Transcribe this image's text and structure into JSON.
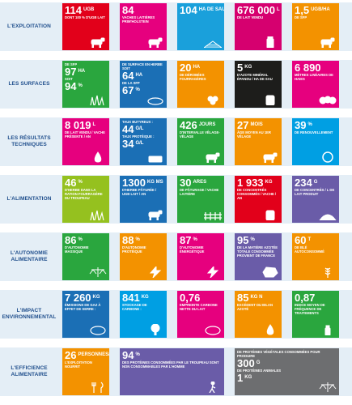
{
  "rows": [
    {
      "label": "L'EXPLOITATION",
      "tiles": [
        {
          "big": "114",
          "unit": "UGB",
          "text": "DONT 100 % D'UGB LAIT",
          "icon": "cows-icon"
        },
        {
          "big": "84",
          "unit": "",
          "text": "VACHES LAITIÈRES PRIM'HOLSTEIN",
          "icon": "cow-icon"
        },
        {
          "big": "104",
          "unit": "HA DE SAU",
          "text": "",
          "icon": "field-icon"
        },
        {
          "big": "676 000",
          "unit": "L",
          "text": "DE LAIT VENDU",
          "icon": "milk-can-icon"
        },
        {
          "big": "1,5",
          "unit": "UGB/HA",
          "text": "DE SFP",
          "icon": "cows-icon"
        }
      ]
    },
    {
      "label": "LES SURFACES",
      "tiles": [
        {
          "big": "97",
          "unit": "HA",
          "text": "DE SFP",
          "big2": "94",
          "unit2": "%",
          "text2": "SOIT",
          "icon": "grass-icon"
        },
        {
          "big": "64",
          "unit": "HA",
          "text": "DE SURFACE EN HERBE SOIT",
          "big2": "67",
          "unit2": "%",
          "text2": "DE LA SFP",
          "icon": "hay-icon"
        },
        {
          "big": "20",
          "unit": "HA",
          "text": "DE DÉROBÉES FOURRAGÈRES",
          "icon": "clover-icon"
        },
        {
          "big": "5",
          "unit": "KG",
          "text": "D'AZOTE MINÉRAL ÉPANDU / HA DE SAU",
          "icon": "fertilizer-icon"
        },
        {
          "big": "6 890",
          "unit": "",
          "text": "MÈTRES LINÉAIRES DE HAIES",
          "icon": "hedge-icon"
        }
      ]
    },
    {
      "label": "LES RÉSULTATS TECHNIQUES",
      "tiles": [
        {
          "big": "8 019",
          "unit": "L",
          "text": "DE LAIT VENDU / VACHE PRÉSENTE / AN",
          "icon": "udder-icon"
        },
        {
          "big": "44",
          "unit": "G/L",
          "text": "TAUX BUTYREUX :",
          "big2": "34",
          "unit2": "G/L",
          "text2": "TAUX PROTÉIQUE :",
          "icon": "butter-icon"
        },
        {
          "big": "426",
          "unit": "JOURS",
          "text": "D'INTERVALLE VÊLAGE-VÊLAGE",
          "icon": "calf-icon"
        },
        {
          "big": "27",
          "unit": "MOIS",
          "text": "ÂGE MOYEN AU 1ER VÊLAGE",
          "icon": "calf-icon"
        },
        {
          "big": "39",
          "unit": "%",
          "text": "DE RENOUVELLEMENT",
          "icon": "renewal-icon"
        }
      ]
    },
    {
      "label": "L'ALIMENTATION",
      "tiles": [
        {
          "big": "46",
          "unit": "%",
          "text": "D'HERBE DANS LA RATION FOURRAGÈRE DU TROUPEAU",
          "icon": "grass-icon"
        },
        {
          "big": "1300",
          "unit": "KG MS",
          "text": "D'HERBE PÂTURÉE / UGB LAIT / AN",
          "icon": "grazing-cow-icon"
        },
        {
          "big": "30",
          "unit": "ARES",
          "text": "DE PÂTURAGE / VACHE LAITIÈRE",
          "icon": "fence-icon"
        },
        {
          "big": "1 933",
          "unit": "KG",
          "text": "DE CONCENTRÉS CONSOMMÉS / VACHE / AN",
          "icon": "feed-bag-icon"
        },
        {
          "big": "234",
          "unit": "G",
          "text": "DE CONCENTRÉS / L DE LAIT PRODUIT",
          "icon": "grain-pile-icon"
        }
      ]
    },
    {
      "label": "L'AUTONOMIE ALIMENTAIRE",
      "tiles": [
        {
          "big": "86",
          "unit": "%",
          "text": "D'AUTONOMIE MASSIQUE",
          "icon": "scale-icon"
        },
        {
          "big": "88",
          "unit": "%",
          "text": "D'AUTONOMIE PROTÉIQUE",
          "icon": "protein-icon"
        },
        {
          "big": "87",
          "unit": "%",
          "text": "D'AUTONOMIE ÉNERGÉTIQUE",
          "icon": "energy-icon"
        },
        {
          "big": "95",
          "unit": "%",
          "text": "DE LA MATIÈRE AZOTÉE TOTALE CONSOMMÉE PROVIENT DE FRANCE",
          "icon": "france-icon"
        },
        {
          "big": "60",
          "unit": "T",
          "text": "DE BLÉ AUTOCONSOMMÉ",
          "icon": "wheat-icon"
        }
      ]
    },
    {
      "label": "L'IMPACT ENVIRONNEMENTAL",
      "tiles": [
        {
          "big": "7 260",
          "unit": "KG",
          "text": "ÉMISSIONS DE GAZ À EFFET DE SERRE :",
          "icon": "co2-icon"
        },
        {
          "big": "841",
          "unit": "KG",
          "text": "STOCKAGE DE CARBONE :",
          "icon": "tree-icon"
        },
        {
          "big": "0,76",
          "unit": "",
          "text": "EMPREINTE CARBONE NETTE DU LAIT",
          "icon": "co2-icon"
        },
        {
          "big": "85",
          "unit": "KG N",
          "text": "EXCÉDENT DU BILAN AZOTÉ",
          "icon": "drop-icon"
        },
        {
          "big": "0,87",
          "unit": "",
          "text": "INDICE MOYEN DE FRÉQUENCE DE TRAITEMENTS",
          "icon": "spray-icon"
        }
      ]
    },
    {
      "label": "L'EFFICIENCE ALIMENTAIRE",
      "tiles": [
        {
          "big": "26",
          "unit": "PERSONNES/HA",
          "text": "L'EXPLOITATION NOURRIT",
          "icon": "cutlery-icon"
        },
        {
          "big": "94",
          "unit": "%",
          "text": "DES PROTÉINES CONSOMMÉES PAR LE TROUPEAU SONT NON CONSOMMABLES PAR L'HOMME",
          "icon": "walker-icon"
        },
        {
          "big": "300",
          "unit": "G",
          "text": "DE PROTÉINES VÉGÉTALES CONSOMMÉES POUR PRODUIRE",
          "big2": "1",
          "unit2": "KG",
          "text2": "DE PROTÉINES ANIMALES",
          "icon": "scale-icon"
        }
      ]
    }
  ],
  "colors": [
    "#e2001a",
    "#e6007e",
    "#009fe3",
    "#95c11f",
    "#f39200",
    "#1d4f91",
    "#6a5ca8",
    "#6d6e70"
  ]
}
